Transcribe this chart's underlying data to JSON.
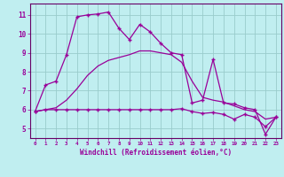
{
  "xlabel": "Windchill (Refroidissement éolien,°C)",
  "bg_color": "#c0eef0",
  "line_color": "#990099",
  "grid_color": "#99cccc",
  "spine_color": "#660066",
  "ylim": [
    4.5,
    11.6
  ],
  "xlim": [
    -0.5,
    23.5
  ],
  "yticks": [
    5,
    6,
    7,
    8,
    9,
    10,
    11
  ],
  "xticks": [
    0,
    1,
    2,
    3,
    4,
    5,
    6,
    7,
    8,
    9,
    10,
    11,
    12,
    13,
    14,
    15,
    16,
    17,
    18,
    19,
    20,
    21,
    22,
    23
  ],
  "series1_x": [
    0,
    1,
    2,
    3,
    4,
    5,
    6,
    7,
    8,
    9,
    10,
    11,
    12,
    13,
    14,
    15,
    16,
    17,
    18,
    19,
    20,
    21,
    22,
    23
  ],
  "series1_y": [
    5.9,
    7.3,
    7.5,
    8.9,
    10.9,
    11.0,
    11.05,
    11.15,
    10.3,
    9.7,
    10.5,
    10.1,
    9.5,
    9.0,
    8.9,
    6.35,
    6.5,
    8.65,
    6.35,
    6.3,
    6.1,
    6.0,
    4.7,
    5.6
  ],
  "series2_x": [
    0,
    1,
    2,
    3,
    4,
    5,
    6,
    7,
    8,
    9,
    10,
    11,
    12,
    13,
    14,
    15,
    16,
    17,
    18,
    19,
    20,
    21,
    22,
    23
  ],
  "series2_y": [
    5.9,
    6.0,
    6.0,
    6.0,
    6.0,
    6.0,
    6.0,
    6.0,
    6.0,
    6.0,
    6.0,
    6.0,
    6.0,
    6.0,
    6.05,
    5.9,
    5.8,
    5.85,
    5.75,
    5.5,
    5.75,
    5.6,
    5.1,
    5.6
  ],
  "series3_x": [
    0,
    1,
    2,
    3,
    4,
    5,
    6,
    7,
    8,
    9,
    10,
    11,
    12,
    13,
    14,
    15,
    16,
    17,
    18,
    19,
    20,
    21,
    22,
    23
  ],
  "series3_y": [
    5.9,
    6.0,
    6.1,
    6.5,
    7.1,
    7.8,
    8.3,
    8.6,
    8.75,
    8.9,
    9.1,
    9.1,
    9.0,
    8.9,
    8.5,
    7.5,
    6.65,
    6.5,
    6.4,
    6.2,
    6.0,
    5.9,
    5.5,
    5.6
  ]
}
